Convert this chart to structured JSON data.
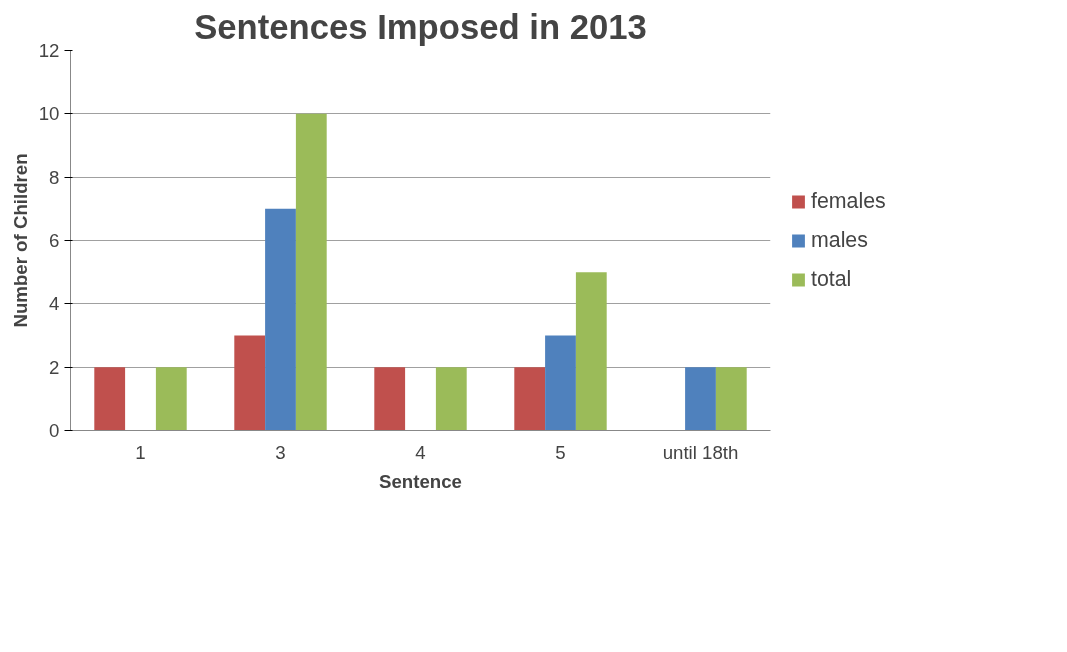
{
  "chart_data": {
    "type": "bar",
    "title": "Sentences Imposed in 2013",
    "xlabel": "Sentence",
    "ylabel": "Number of Children",
    "categories": [
      "1",
      "3",
      "4",
      "5",
      "until 18th"
    ],
    "series": [
      {
        "name": "females",
        "color": "#c0504d",
        "values": [
          2,
          3,
          2,
          2,
          0
        ]
      },
      {
        "name": "males",
        "color": "#4f81bd",
        "values": [
          0,
          7,
          0,
          3,
          2
        ]
      },
      {
        "name": "total",
        "color": "#9bbb59",
        "values": [
          2,
          10,
          2,
          5,
          2
        ]
      }
    ],
    "ylim": [
      0,
      12
    ],
    "yticks": [
      0,
      2,
      4,
      6,
      8,
      10,
      12
    ],
    "grid": "y",
    "legend": "right"
  }
}
